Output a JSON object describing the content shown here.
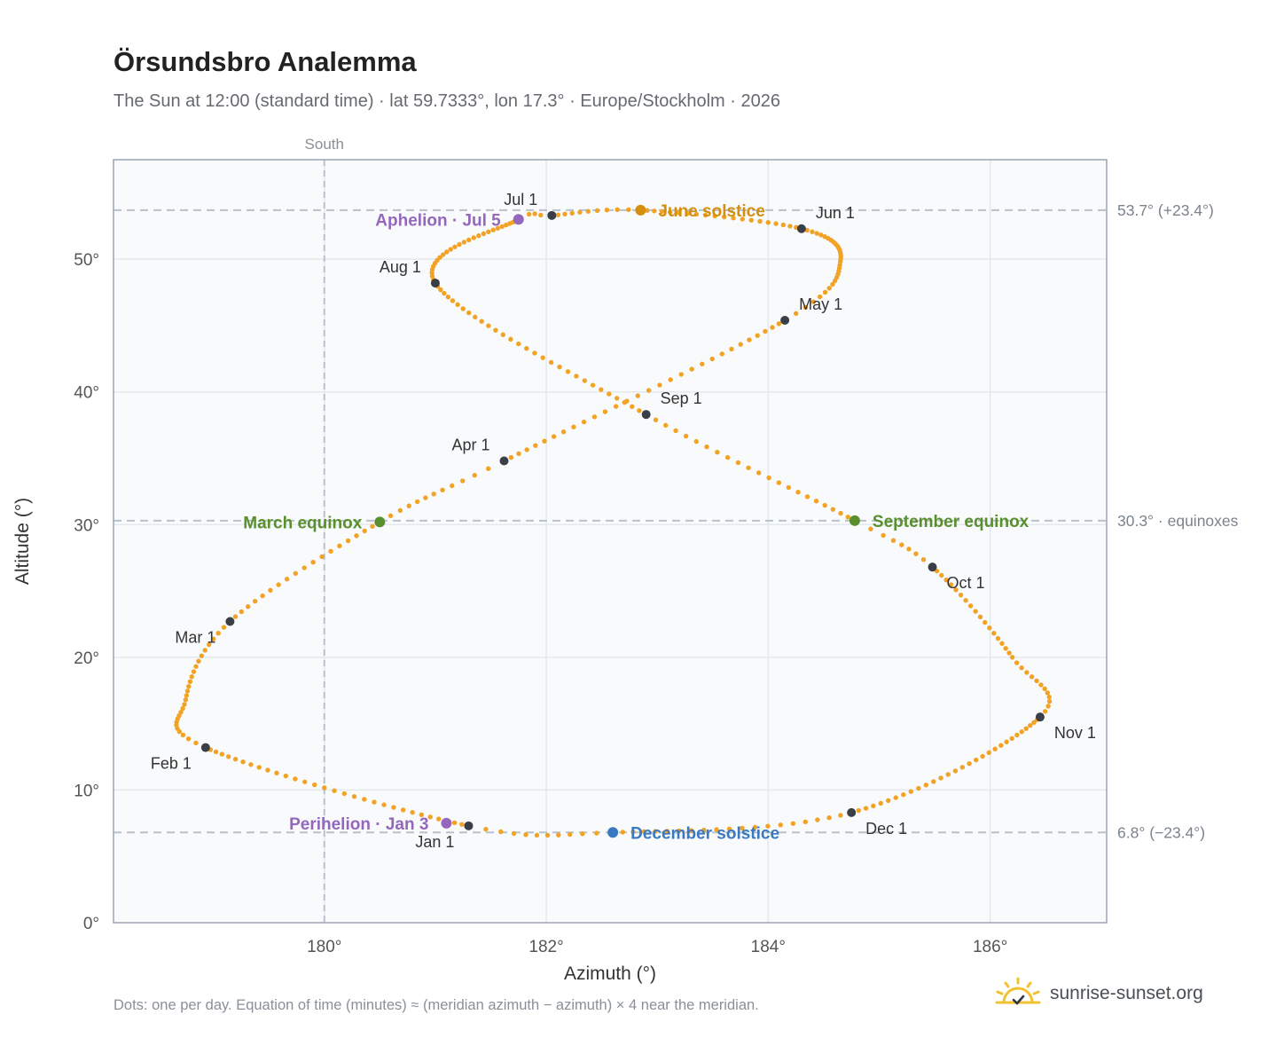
{
  "header": {
    "title": "Örsundsbro Analemma",
    "subtitle": "The Sun at 12:00 (standard time) · lat 59.7333°, lon 17.3° · Europe/Stockholm · 2026"
  },
  "footer": {
    "note": "Dots: one per day. Equation of time (minutes) ≈ (meridian azimuth − azimuth) × 4 near the meridian.",
    "brand": "sunrise-sunset.org",
    "logo_icon": "sun-logo-icon"
  },
  "colors": {
    "path": "#f2a325",
    "month_marker": "#3a3f47",
    "june_solstice": "#d48f0c",
    "december_solstice": "#3a78c0",
    "equinox": "#5a8f2e",
    "apsis": "#9467bd",
    "grid": "#e4e9ee",
    "plot_bg": "#f8fafc",
    "frame": "#9aa4b2",
    "reference_line": "#b8c2cc"
  },
  "chart_data": {
    "type": "scatter",
    "title": "Örsundsbro Analemma",
    "xlabel": "Azimuth (°)",
    "ylabel": "Altitude (°)",
    "xlim": [
      178.1,
      187.05
    ],
    "ylim": [
      0,
      57.5
    ],
    "x_ticks": [
      {
        "value": 180,
        "label": "180°"
      },
      {
        "value": 182,
        "label": "182°"
      },
      {
        "value": 184,
        "label": "184°"
      },
      {
        "value": 186,
        "label": "186°"
      }
    ],
    "y_ticks": [
      {
        "value": 0,
        "label": "0°"
      },
      {
        "value": 10,
        "label": "10°"
      },
      {
        "value": 20,
        "label": "20°"
      },
      {
        "value": 30,
        "label": "30°"
      },
      {
        "value": 40,
        "label": "40°"
      },
      {
        "value": 50,
        "label": "50°"
      }
    ],
    "grid": true,
    "south_line": {
      "value": 180,
      "label": "South"
    },
    "reference_lines": [
      {
        "value": 53.7,
        "label": "53.7° (+23.4°)"
      },
      {
        "value": 30.3,
        "label": "30.3° · equinoxes"
      },
      {
        "value": 6.8,
        "label": "6.8° (−23.4°)"
      }
    ],
    "path_anchors": [
      {
        "doy": 1,
        "az": 181.3,
        "alt": 7.3
      },
      {
        "doy": 32,
        "az": 178.93,
        "alt": 13.2
      },
      {
        "doy": 45,
        "az": 178.75,
        "alt": 16.8
      },
      {
        "doy": 60,
        "az": 179.15,
        "alt": 22.7
      },
      {
        "doy": 79,
        "az": 180.5,
        "alt": 30.2
      },
      {
        "doy": 91,
        "az": 181.62,
        "alt": 34.8
      },
      {
        "doy": 121,
        "az": 184.15,
        "alt": 45.4
      },
      {
        "doy": 135,
        "az": 184.65,
        "alt": 49.8
      },
      {
        "doy": 152,
        "az": 184.3,
        "alt": 52.3
      },
      {
        "doy": 172,
        "az": 182.85,
        "alt": 53.7
      },
      {
        "doy": 182,
        "az": 182.05,
        "alt": 53.3
      },
      {
        "doy": 186,
        "az": 181.75,
        "alt": 53.0
      },
      {
        "doy": 213,
        "az": 181.0,
        "alt": 48.2
      },
      {
        "doy": 244,
        "az": 182.9,
        "alt": 38.3
      },
      {
        "doy": 266,
        "az": 184.78,
        "alt": 30.3
      },
      {
        "doy": 274,
        "az": 185.48,
        "alt": 26.8
      },
      {
        "doy": 292,
        "az": 186.2,
        "alt": 20.0
      },
      {
        "doy": 305,
        "az": 186.45,
        "alt": 15.5
      },
      {
        "doy": 335,
        "az": 184.75,
        "alt": 8.3
      },
      {
        "doy": 355,
        "az": 182.6,
        "alt": 6.8
      },
      {
        "doy": 366,
        "az": 181.3,
        "alt": 7.3
      }
    ],
    "month_markers": [
      {
        "label": "Jan 1",
        "az": 181.3,
        "alt": 7.3,
        "label_pos": "below-left"
      },
      {
        "label": "Feb 1",
        "az": 178.93,
        "alt": 13.2,
        "label_pos": "below-left"
      },
      {
        "label": "Mar 1",
        "az": 179.15,
        "alt": 22.7,
        "label_pos": "below-left"
      },
      {
        "label": "Apr 1",
        "az": 181.62,
        "alt": 34.8,
        "label_pos": "above-left"
      },
      {
        "label": "May 1",
        "az": 184.15,
        "alt": 45.4,
        "label_pos": "above-right"
      },
      {
        "label": "Jun 1",
        "az": 184.3,
        "alt": 52.3,
        "label_pos": "above-right"
      },
      {
        "label": "Jul 1",
        "az": 182.05,
        "alt": 53.3,
        "label_pos": "above-left"
      },
      {
        "label": "Aug 1",
        "az": 181.0,
        "alt": 48.2,
        "label_pos": "above-left"
      },
      {
        "label": "Sep 1",
        "az": 182.9,
        "alt": 38.3,
        "label_pos": "above-right"
      },
      {
        "label": "Oct 1",
        "az": 185.48,
        "alt": 26.8,
        "label_pos": "below-right"
      },
      {
        "label": "Nov 1",
        "az": 186.45,
        "alt": 15.5,
        "label_pos": "below-right"
      },
      {
        "label": "Dec 1",
        "az": 184.75,
        "alt": 8.3,
        "label_pos": "below-right"
      }
    ],
    "events": [
      {
        "label": "June solstice",
        "az": 182.85,
        "alt": 53.7,
        "color_key": "june_solstice",
        "label_side": "right"
      },
      {
        "label": "December solstice",
        "az": 182.6,
        "alt": 6.8,
        "color_key": "december_solstice",
        "label_side": "right"
      },
      {
        "label": "March equinox",
        "az": 180.5,
        "alt": 30.2,
        "color_key": "equinox",
        "label_side": "left"
      },
      {
        "label": "September equinox",
        "az": 184.78,
        "alt": 30.3,
        "color_key": "equinox",
        "label_side": "right"
      },
      {
        "label": "Aphelion · Jul 5",
        "az": 181.75,
        "alt": 53.0,
        "color_key": "apsis",
        "label_side": "left"
      },
      {
        "label": "Perihelion · Jan 3",
        "az": 181.1,
        "alt": 7.5,
        "color_key": "apsis",
        "label_side": "left"
      }
    ]
  }
}
